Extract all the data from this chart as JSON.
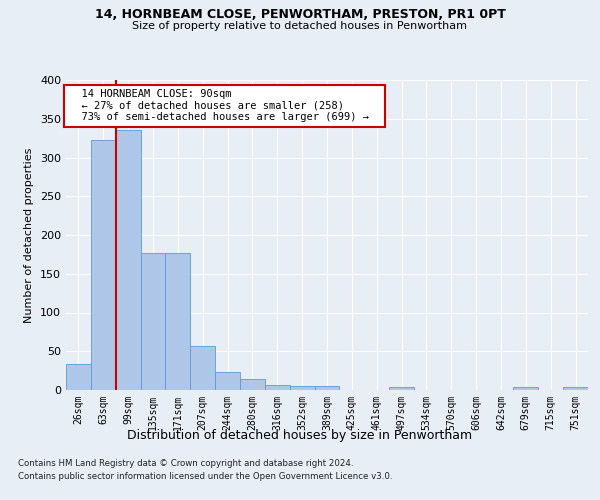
{
  "title1": "14, HORNBEAM CLOSE, PENWORTHAM, PRESTON, PR1 0PT",
  "title2": "Size of property relative to detached houses in Penwortham",
  "xlabel": "Distribution of detached houses by size in Penwortham",
  "ylabel": "Number of detached properties",
  "footer1": "Contains HM Land Registry data © Crown copyright and database right 2024.",
  "footer2": "Contains public sector information licensed under the Open Government Licence v3.0.",
  "annotation_line1": "14 HORNBEAM CLOSE: 90sqm",
  "annotation_line2": "← 27% of detached houses are smaller (258)",
  "annotation_line3": "73% of semi-detached houses are larger (699) →",
  "bar_labels": [
    "26sqm",
    "63sqm",
    "99sqm",
    "135sqm",
    "171sqm",
    "207sqm",
    "244sqm",
    "280sqm",
    "316sqm",
    "352sqm",
    "389sqm",
    "425sqm",
    "461sqm",
    "497sqm",
    "534sqm",
    "570sqm",
    "606sqm",
    "642sqm",
    "679sqm",
    "715sqm",
    "751sqm"
  ],
  "bar_values": [
    33,
    323,
    335,
    177,
    177,
    57,
    23,
    14,
    6,
    5,
    5,
    0,
    0,
    4,
    0,
    0,
    0,
    0,
    4,
    0,
    4
  ],
  "bar_color": "#aec6e8",
  "bar_edge_color": "#5b9bd5",
  "vline_color": "#cc0000",
  "vline_x": 1.5,
  "annotation_box_color": "#ffffff",
  "annotation_box_edge": "#cc0000",
  "bg_color": "#e8eef5",
  "plot_bg_color": "#e8eef5",
  "grid_color": "#ffffff",
  "ylim": [
    0,
    400
  ],
  "yticks": [
    0,
    50,
    100,
    150,
    200,
    250,
    300,
    350,
    400
  ]
}
